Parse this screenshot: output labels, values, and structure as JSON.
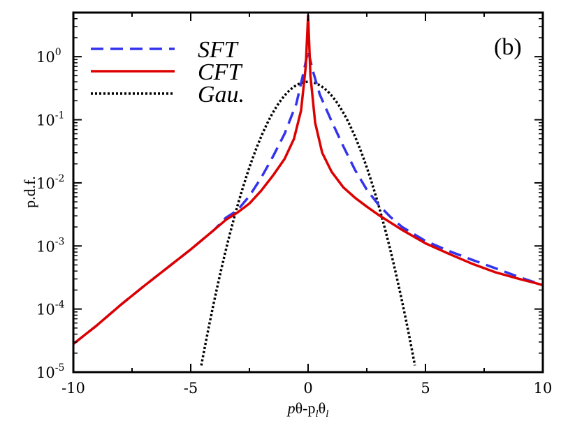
{
  "chart_data": {
    "type": "line",
    "title": "",
    "panel_label": "(b)",
    "xlabel": "pθ-p_lθ_l",
    "xlabel_parts": {
      "a": "p",
      "b": "θ-p",
      "c": "l",
      "d": "θ",
      "e": "l"
    },
    "ylabel": "p.d.f.",
    "xlim": [
      -10,
      10
    ],
    "ylim": [
      1e-05,
      5
    ],
    "yscale": "log",
    "x_ticks": [
      {
        "value": -10,
        "label": "-10"
      },
      {
        "value": -5,
        "label": "-5"
      },
      {
        "value": 0,
        "label": "0"
      },
      {
        "value": 5,
        "label": "5"
      },
      {
        "value": 10,
        "label": "10"
      }
    ],
    "y_ticks": [
      {
        "value": 1e-05,
        "base": "10",
        "exp": "-5"
      },
      {
        "value": 0.0001,
        "base": "10",
        "exp": "-4"
      },
      {
        "value": 0.001,
        "base": "10",
        "exp": "-3"
      },
      {
        "value": 0.01,
        "base": "10",
        "exp": "-2"
      },
      {
        "value": 0.1,
        "base": "10",
        "exp": "-1"
      },
      {
        "value": 1,
        "base": "10",
        "exp": "0"
      }
    ],
    "legend_position": "top-left",
    "series": [
      {
        "name": "SFT",
        "color": "#3333ee",
        "style": "dashed",
        "x": [
          -10,
          -9,
          -8,
          -7,
          -6,
          -5,
          -4,
          -3.5,
          -3,
          -2.5,
          -2,
          -1.5,
          -1,
          -0.5,
          -0.2,
          0,
          0.2,
          0.5,
          1,
          1.5,
          2,
          2.5,
          3,
          3.5,
          4,
          5,
          6,
          7,
          8,
          9,
          10
        ],
        "y": [
          2.8e-05,
          5.5e-05,
          0.000115,
          0.00023,
          0.00045,
          0.00088,
          0.0018,
          0.0028,
          0.0037,
          0.0062,
          0.012,
          0.026,
          0.06,
          0.18,
          0.55,
          1.25,
          0.6,
          0.25,
          0.095,
          0.038,
          0.016,
          0.0078,
          0.0045,
          0.0029,
          0.002,
          0.0012,
          0.00083,
          0.0006,
          0.00044,
          0.00032,
          0.00024
        ]
      },
      {
        "name": "CFT",
        "color": "#dd0000",
        "style": "solid",
        "x": [
          -10,
          -9,
          -8,
          -7,
          -6,
          -5,
          -4,
          -3.5,
          -3,
          -2.5,
          -2,
          -1.5,
          -1,
          -0.6,
          -0.3,
          -0.1,
          0,
          0.1,
          0.3,
          0.6,
          1,
          1.5,
          2,
          2.5,
          3,
          4,
          5,
          6,
          7,
          8,
          9,
          10
        ],
        "y": [
          2.8e-05,
          5.5e-05,
          0.000115,
          0.00023,
          0.00045,
          0.00088,
          0.0018,
          0.0026,
          0.0034,
          0.0047,
          0.0075,
          0.013,
          0.024,
          0.05,
          0.14,
          0.7,
          4.5,
          0.5,
          0.09,
          0.03,
          0.015,
          0.0085,
          0.0058,
          0.0042,
          0.0031,
          0.0018,
          0.0011,
          0.00075,
          0.00052,
          0.00038,
          0.0003,
          0.00024
        ]
      },
      {
        "name": "Gau.",
        "color": "#000000",
        "style": "dotted",
        "gaussian": {
          "mean": 0,
          "sigma": 1,
          "x_from": -4.55,
          "x_to": 4.55
        }
      }
    ]
  }
}
